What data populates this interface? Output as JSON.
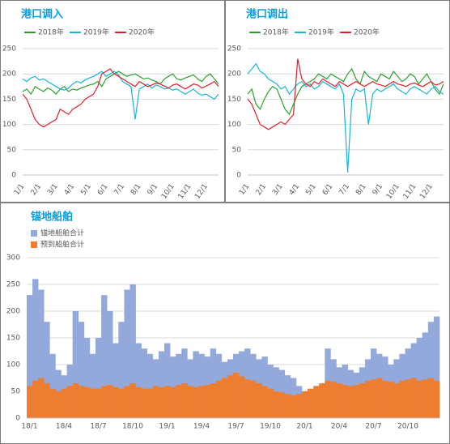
{
  "chart_data": [
    {
      "type": "line",
      "title": "港口调入",
      "categories": [
        "1/1",
        null,
        null,
        null,
        "2/1",
        null,
        null,
        null,
        "3/1",
        null,
        null,
        null,
        "4/1",
        null,
        null,
        null,
        "5/1",
        null,
        null,
        null,
        "6/1",
        null,
        null,
        null,
        "7/1",
        null,
        null,
        null,
        "8/1",
        null,
        null,
        null,
        "9/1",
        null,
        null,
        null,
        "10/1",
        null,
        null,
        null,
        "11/1",
        null,
        null,
        null,
        "12/1",
        null,
        null,
        null
      ],
      "series": [
        {
          "name": "2018年",
          "color": "#2ca02c",
          "values": [
            165,
            170,
            160,
            175,
            170,
            165,
            172,
            168,
            160,
            170,
            175,
            165,
            170,
            168,
            172,
            175,
            178,
            180,
            185,
            175,
            190,
            195,
            200,
            205,
            200,
            195,
            198,
            200,
            195,
            190,
            192,
            188,
            185,
            180,
            190,
            195,
            200,
            190,
            188,
            192,
            195,
            198,
            190,
            185,
            195,
            200,
            190,
            180
          ]
        },
        {
          "name": "2019年",
          "color": "#17b5d8",
          "values": [
            190,
            185,
            192,
            195,
            188,
            190,
            185,
            180,
            175,
            170,
            168,
            172,
            180,
            185,
            182,
            188,
            192,
            195,
            200,
            205,
            195,
            200,
            205,
            198,
            185,
            180,
            175,
            110,
            170,
            175,
            180,
            172,
            178,
            175,
            170,
            172,
            168,
            170,
            165,
            160,
            165,
            170,
            162,
            158,
            160,
            155,
            150,
            160
          ]
        },
        {
          "name": "2020年",
          "color": "#e0202a",
          "values": [
            160,
            150,
            130,
            110,
            100,
            95,
            100,
            105,
            110,
            130,
            125,
            120,
            130,
            135,
            140,
            150,
            155,
            160,
            175,
            200,
            205,
            210,
            200,
            195,
            190,
            185,
            180,
            175,
            185,
            180,
            175,
            178,
            182,
            180,
            176,
            172,
            178,
            180,
            175,
            170,
            175,
            180,
            178,
            172,
            176,
            180,
            185,
            175
          ]
        }
      ],
      "ylim": [
        0,
        250
      ],
      "yticks": [
        0,
        50,
        100,
        150,
        200,
        250
      ],
      "grid": true
    },
    {
      "type": "line",
      "title": "港口调出",
      "categories": [
        "1/1",
        null,
        null,
        null,
        "2/1",
        null,
        null,
        null,
        "3/1",
        null,
        null,
        null,
        "4/1",
        null,
        null,
        null,
        "5/1",
        null,
        null,
        null,
        "6/1",
        null,
        null,
        null,
        "7/1",
        null,
        null,
        null,
        "8/1",
        null,
        null,
        null,
        "9/1",
        null,
        null,
        null,
        "10/1",
        null,
        null,
        null,
        "11/1",
        null,
        null,
        null,
        "12/1",
        null,
        null,
        null
      ],
      "series": [
        {
          "name": "2018年",
          "color": "#2ca02c",
          "values": [
            160,
            170,
            140,
            130,
            150,
            165,
            175,
            170,
            150,
            130,
            120,
            140,
            160,
            175,
            180,
            185,
            190,
            200,
            195,
            190,
            200,
            195,
            190,
            185,
            200,
            210,
            190,
            180,
            205,
            195,
            190,
            185,
            200,
            195,
            190,
            205,
            195,
            185,
            190,
            200,
            195,
            180,
            190,
            200,
            185,
            170,
            160,
            180
          ]
        },
        {
          "name": "2019年",
          "color": "#17b5d8",
          "values": [
            200,
            210,
            220,
            205,
            200,
            190,
            185,
            180,
            170,
            175,
            160,
            170,
            180,
            185,
            175,
            180,
            170,
            175,
            185,
            180,
            175,
            170,
            180,
            160,
            5,
            150,
            170,
            165,
            170,
            100,
            160,
            170,
            165,
            170,
            175,
            180,
            170,
            165,
            160,
            170,
            175,
            170,
            165,
            160,
            170,
            175,
            165,
            160
          ]
        },
        {
          "name": "2020年",
          "color": "#e0202a",
          "values": [
            150,
            140,
            120,
            100,
            95,
            90,
            95,
            100,
            105,
            100,
            110,
            120,
            230,
            190,
            180,
            175,
            185,
            180,
            190,
            185,
            180,
            175,
            185,
            180,
            175,
            180,
            185,
            180,
            175,
            180,
            185,
            180,
            178,
            175,
            180,
            185,
            180,
            178,
            175,
            180,
            182,
            178,
            175,
            180,
            185,
            178,
            180,
            185
          ]
        }
      ],
      "ylim": [
        0,
        250
      ],
      "yticks": [
        0,
        50,
        100,
        150,
        200,
        250
      ],
      "grid": true
    },
    {
      "type": "bar",
      "title": "锚地船舶",
      "barmode": "overlay",
      "categories": [
        "18/1",
        null,
        null,
        null,
        null,
        null,
        "18/4",
        null,
        null,
        null,
        null,
        null,
        "18/7",
        null,
        null,
        null,
        null,
        null,
        "18/10",
        null,
        null,
        null,
        null,
        null,
        "19/1",
        null,
        null,
        null,
        null,
        null,
        "19/4",
        null,
        null,
        null,
        null,
        null,
        "19/7",
        null,
        null,
        null,
        null,
        null,
        "19/10",
        null,
        null,
        null,
        null,
        null,
        "20/1",
        null,
        null,
        null,
        null,
        null,
        "20/4",
        null,
        null,
        null,
        null,
        null,
        "20/7",
        null,
        null,
        null,
        null,
        null,
        "20/10",
        null,
        null,
        null,
        null,
        null
      ],
      "series": [
        {
          "name": "锚地船舶合计",
          "color": "#93a9dc",
          "values": [
            230,
            260,
            240,
            180,
            120,
            90,
            80,
            100,
            200,
            180,
            150,
            120,
            150,
            230,
            200,
            140,
            180,
            240,
            250,
            140,
            130,
            120,
            110,
            125,
            140,
            115,
            120,
            130,
            110,
            125,
            120,
            115,
            130,
            120,
            105,
            110,
            120,
            125,
            130,
            120,
            110,
            115,
            100,
            95,
            90,
            80,
            75,
            60,
            50,
            48,
            55,
            60,
            130,
            110,
            95,
            100,
            90,
            85,
            95,
            110,
            130,
            120,
            115,
            100,
            110,
            120,
            130,
            140,
            150,
            160,
            180,
            190
          ]
        },
        {
          "name": "预到船舶合计",
          "color": "#ed7d31",
          "values": [
            60,
            70,
            75,
            65,
            55,
            50,
            55,
            60,
            65,
            60,
            58,
            55,
            55,
            60,
            62,
            58,
            55,
            60,
            65,
            58,
            55,
            55,
            60,
            58,
            60,
            58,
            62,
            65,
            60,
            58,
            60,
            62,
            65,
            70,
            75,
            80,
            85,
            78,
            72,
            70,
            65,
            60,
            55,
            50,
            48,
            45,
            42,
            45,
            50,
            55,
            60,
            65,
            70,
            68,
            65,
            62,
            60,
            62,
            65,
            70,
            72,
            75,
            70,
            68,
            65,
            70,
            72,
            75,
            70,
            72,
            75,
            70
          ]
        }
      ],
      "ylim": [
        0,
        300
      ],
      "yticks": [
        0,
        50,
        100,
        150,
        200,
        250,
        300
      ],
      "grid": true
    }
  ]
}
